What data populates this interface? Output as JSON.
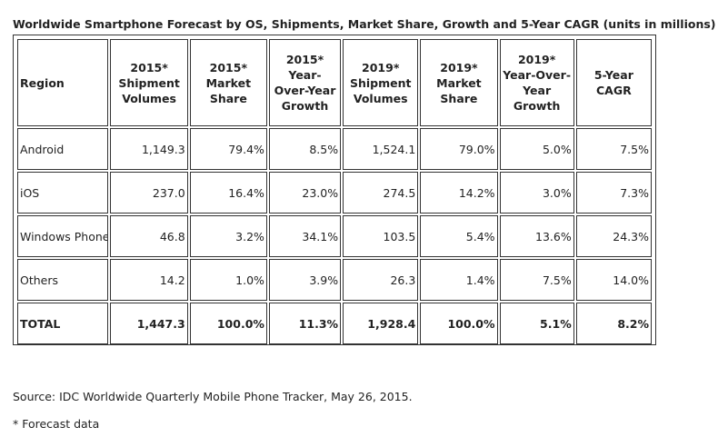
{
  "title": "Worldwide Smartphone Forecast by OS, Shipments, Market Share, Growth and 5-Year CAGR (units in millions)",
  "chart_data": {
    "type": "table",
    "title": "Worldwide Smartphone Forecast by OS, Shipments, Market Share, Growth and 5-Year CAGR (units in millions)",
    "columns": [
      "Region",
      "2015* Shipment Volumes",
      "2015* Market Share",
      "2015* Year-Over-Year Growth",
      "2019* Shipment Volumes",
      "2019* Market Share",
      "2019* Year-Over-Year Growth",
      "5-Year CAGR"
    ],
    "rows": [
      [
        "Android",
        "1,149.3",
        "79.4%",
        "8.5%",
        "1,524.1",
        "79.0%",
        "5.0%",
        "7.5%"
      ],
      [
        "iOS",
        "237.0",
        "16.4%",
        "23.0%",
        "274.5",
        "14.2%",
        "3.0%",
        "7.3%"
      ],
      [
        "Windows Phone",
        "46.8",
        "3.2%",
        "34.1%",
        "103.5",
        "5.4%",
        "13.6%",
        "24.3%"
      ],
      [
        "Others",
        "14.2",
        "1.0%",
        "3.9%",
        "26.3",
        "1.4%",
        "7.5%",
        "14.0%"
      ],
      [
        "TOTAL",
        "1,447.3",
        "100.0%",
        "11.3%",
        "1,928.4",
        "100.0%",
        "5.1%",
        "8.2%"
      ]
    ]
  },
  "source": "Source: IDC Worldwide Quarterly Mobile Phone Tracker, May 26, 2015.",
  "footnote": "* Forecast data"
}
